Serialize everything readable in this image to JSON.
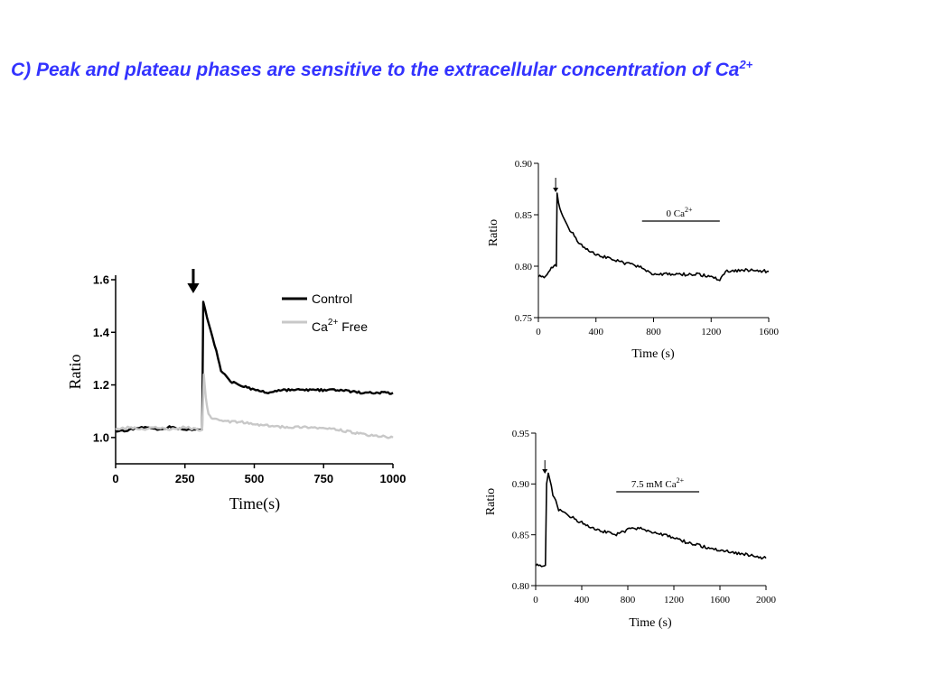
{
  "title": {
    "text": "C) Peak and plateau phases are sensitive to the extracellular concentration of Ca",
    "sup": "2+"
  },
  "chart_data": [
    {
      "type": "line",
      "xlabel": "Time(s)",
      "ylabel": "Ratio",
      "xlim": [
        0,
        1000
      ],
      "ylim": [
        0.9,
        1.6
      ],
      "xticks": [
        "0",
        "250",
        "500",
        "750",
        "1000"
      ],
      "yticks": [
        "1.0",
        "1.2",
        "1.4",
        "1.6"
      ],
      "legend_position": "top-right",
      "annotation_arrow_x": 280,
      "series": [
        {
          "name": "Control",
          "legend_label": "Control",
          "color": "#000000",
          "x": [
            0,
            50,
            100,
            150,
            200,
            250,
            300,
            312,
            316,
            330,
            350,
            370,
            380,
            400,
            420,
            450,
            500,
            550,
            600,
            700,
            800,
            900,
            1000
          ],
          "y": [
            1.02,
            1.03,
            1.04,
            1.03,
            1.04,
            1.03,
            1.03,
            1.03,
            1.52,
            1.45,
            1.38,
            1.3,
            1.25,
            1.23,
            1.21,
            1.2,
            1.18,
            1.17,
            1.18,
            1.18,
            1.18,
            1.17,
            1.17
          ]
        },
        {
          "name": "Ca2+ Free",
          "legend_label": "Ca",
          "legend_sup": "2+",
          "legend_suffix": " Free",
          "color": "#c8c8c8",
          "x": [
            0,
            50,
            100,
            150,
            200,
            250,
            300,
            312,
            318,
            325,
            335,
            350,
            400,
            450,
            500,
            600,
            700,
            800,
            900,
            1000
          ],
          "y": [
            1.03,
            1.04,
            1.03,
            1.04,
            1.03,
            1.04,
            1.03,
            1.03,
            1.24,
            1.15,
            1.09,
            1.07,
            1.06,
            1.06,
            1.05,
            1.04,
            1.04,
            1.03,
            1.01,
            1.0
          ]
        }
      ]
    },
    {
      "type": "line",
      "xlabel": "Time (s)",
      "ylabel": "Ratio",
      "xlim": [
        0,
        1600
      ],
      "ylim": [
        0.75,
        0.9
      ],
      "xticks": [
        "0",
        "400",
        "800",
        "1200",
        "1600"
      ],
      "yticks": [
        "0.75",
        "0.80",
        "0.85",
        "0.90"
      ],
      "annotation_arrow_x": 120,
      "bar_label": "0 Ca",
      "bar_label_sup": "2+",
      "bar_range": [
        720,
        1260
      ],
      "series": [
        {
          "color": "#000000",
          "x": [
            0,
            40,
            80,
            100,
            125,
            130,
            150,
            180,
            220,
            300,
            400,
            500,
            600,
            700,
            800,
            900,
            1000,
            1100,
            1200,
            1260,
            1300,
            1400,
            1500,
            1600
          ],
          "y": [
            0.79,
            0.79,
            0.795,
            0.8,
            0.8,
            0.871,
            0.855,
            0.845,
            0.835,
            0.82,
            0.812,
            0.807,
            0.803,
            0.8,
            0.792,
            0.792,
            0.792,
            0.792,
            0.79,
            0.787,
            0.795,
            0.796,
            0.796,
            0.795
          ]
        }
      ]
    },
    {
      "type": "line",
      "xlabel": "Time (s)",
      "ylabel": "Ratio",
      "xlim": [
        0,
        2000
      ],
      "ylim": [
        0.8,
        0.95
      ],
      "xticks": [
        "0",
        "400",
        "800",
        "1200",
        "1600",
        "2000"
      ],
      "yticks": [
        "0.80",
        "0.85",
        "0.90",
        "0.95"
      ],
      "annotation_arrow_x": 80,
      "bar_label": "7.5 mM Ca",
      "bar_label_sup": "2+",
      "bar_range": [
        700,
        1420
      ],
      "series": [
        {
          "color": "#000000",
          "x": [
            0,
            50,
            85,
            95,
            110,
            150,
            200,
            300,
            400,
            500,
            600,
            700,
            800,
            900,
            1000,
            1100,
            1200,
            1300,
            1400,
            1500,
            1600,
            1700,
            1800,
            1900,
            2000
          ],
          "y": [
            0.82,
            0.82,
            0.82,
            0.9,
            0.91,
            0.89,
            0.875,
            0.868,
            0.862,
            0.857,
            0.853,
            0.85,
            0.855,
            0.857,
            0.853,
            0.85,
            0.847,
            0.843,
            0.84,
            0.837,
            0.835,
            0.833,
            0.831,
            0.829,
            0.827
          ]
        }
      ]
    }
  ]
}
